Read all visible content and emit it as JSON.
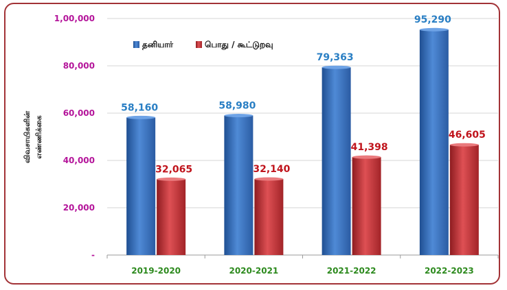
{
  "chart_data": {
    "type": "bar",
    "categories": [
      "2019-2020",
      "2020-2021",
      "2021-2022",
      "2022-2023"
    ],
    "series": [
      {
        "name": "தனியார்",
        "values": [
          58160,
          58980,
          79363,
          95290
        ],
        "labels": [
          "58,160",
          "58,980",
          "79,363",
          "95,290"
        ],
        "color": "#3b78c9"
      },
      {
        "name": "பொது / கூட்டுறவு",
        "values": [
          32065,
          32140,
          41398,
          46605
        ],
        "labels": [
          "32,065",
          "32,140",
          "41,398",
          "46,605"
        ],
        "color": "#c8373b"
      }
    ],
    "ylabel_lines": [
      "விவசாயிகளின்",
      "எண்ணிக்கை"
    ],
    "ylim": [
      0,
      100000
    ],
    "yticks": [
      0,
      20000,
      40000,
      60000,
      80000,
      100000
    ],
    "ytick_labels": [
      "-",
      "20,000",
      "40,000",
      "60,000",
      "80,000",
      "1,00,000"
    ],
    "legend_position": "top-left",
    "grid": true,
    "colors": {
      "tick_y": "#b4149a",
      "tick_x": "#2d8a1e",
      "label_blue": "#2a7fc4",
      "label_red": "#c0141c",
      "border": "#a23236"
    }
  }
}
